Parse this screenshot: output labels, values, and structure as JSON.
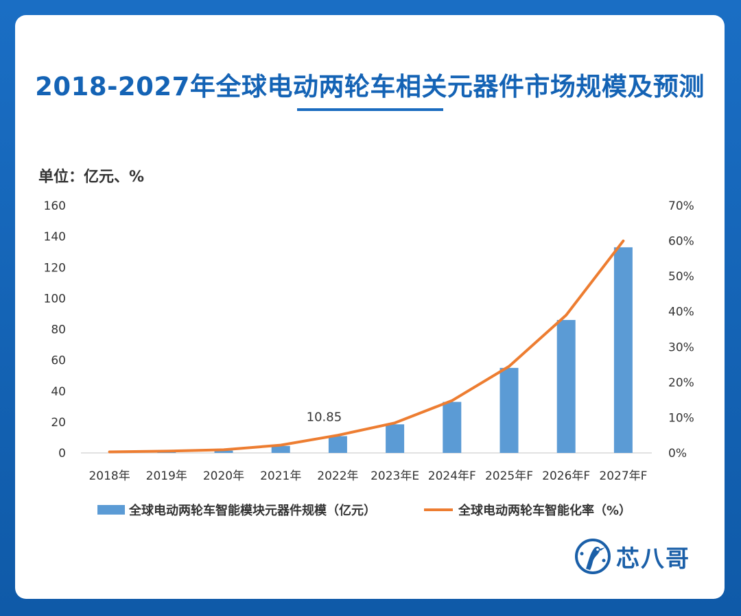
{
  "title": "2018-2027年全球电动两轮车相关元器件市场规模及预测",
  "unit_label": "单位：亿元、%",
  "logo_text": "芯八哥",
  "chart_data": {
    "type": "bar+line",
    "title": "2018-2027年全球电动两轮车相关元器件市场规模及预测",
    "categories": [
      "2018年",
      "2019年",
      "2020年",
      "2021年",
      "2022年",
      "2023年E",
      "2024年F",
      "2025年F",
      "2026年F",
      "2027年F"
    ],
    "series": [
      {
        "name": "全球电动两轮车智能模块元器件规模（亿元）",
        "type": "bar",
        "axis": "left",
        "color": "#5b9bd5",
        "values": [
          0,
          0.5,
          1.5,
          4.5,
          10.85,
          18.5,
          33,
          55,
          86,
          133
        ]
      },
      {
        "name": "全球电动两轮车智能化率（%）",
        "type": "line",
        "axis": "right",
        "color": "#ed7d31",
        "values": [
          0.3,
          0.5,
          0.9,
          2.2,
          5,
          8.5,
          14.8,
          24.5,
          39,
          60
        ]
      }
    ],
    "y_left": {
      "min": 0,
      "max": 160,
      "step": 20,
      "ticks": [
        "0",
        "20",
        "40",
        "60",
        "80",
        "100",
        "120",
        "140",
        "160"
      ]
    },
    "y_right": {
      "min": 0,
      "max": 70,
      "step": 10,
      "ticks": [
        "0%",
        "10%",
        "20%",
        "30%",
        "40%",
        "50%",
        "60%",
        "70%"
      ]
    },
    "data_labels": [
      {
        "category": "2022年",
        "text": "10.85"
      }
    ],
    "legend_position": "bottom",
    "grid": false
  }
}
